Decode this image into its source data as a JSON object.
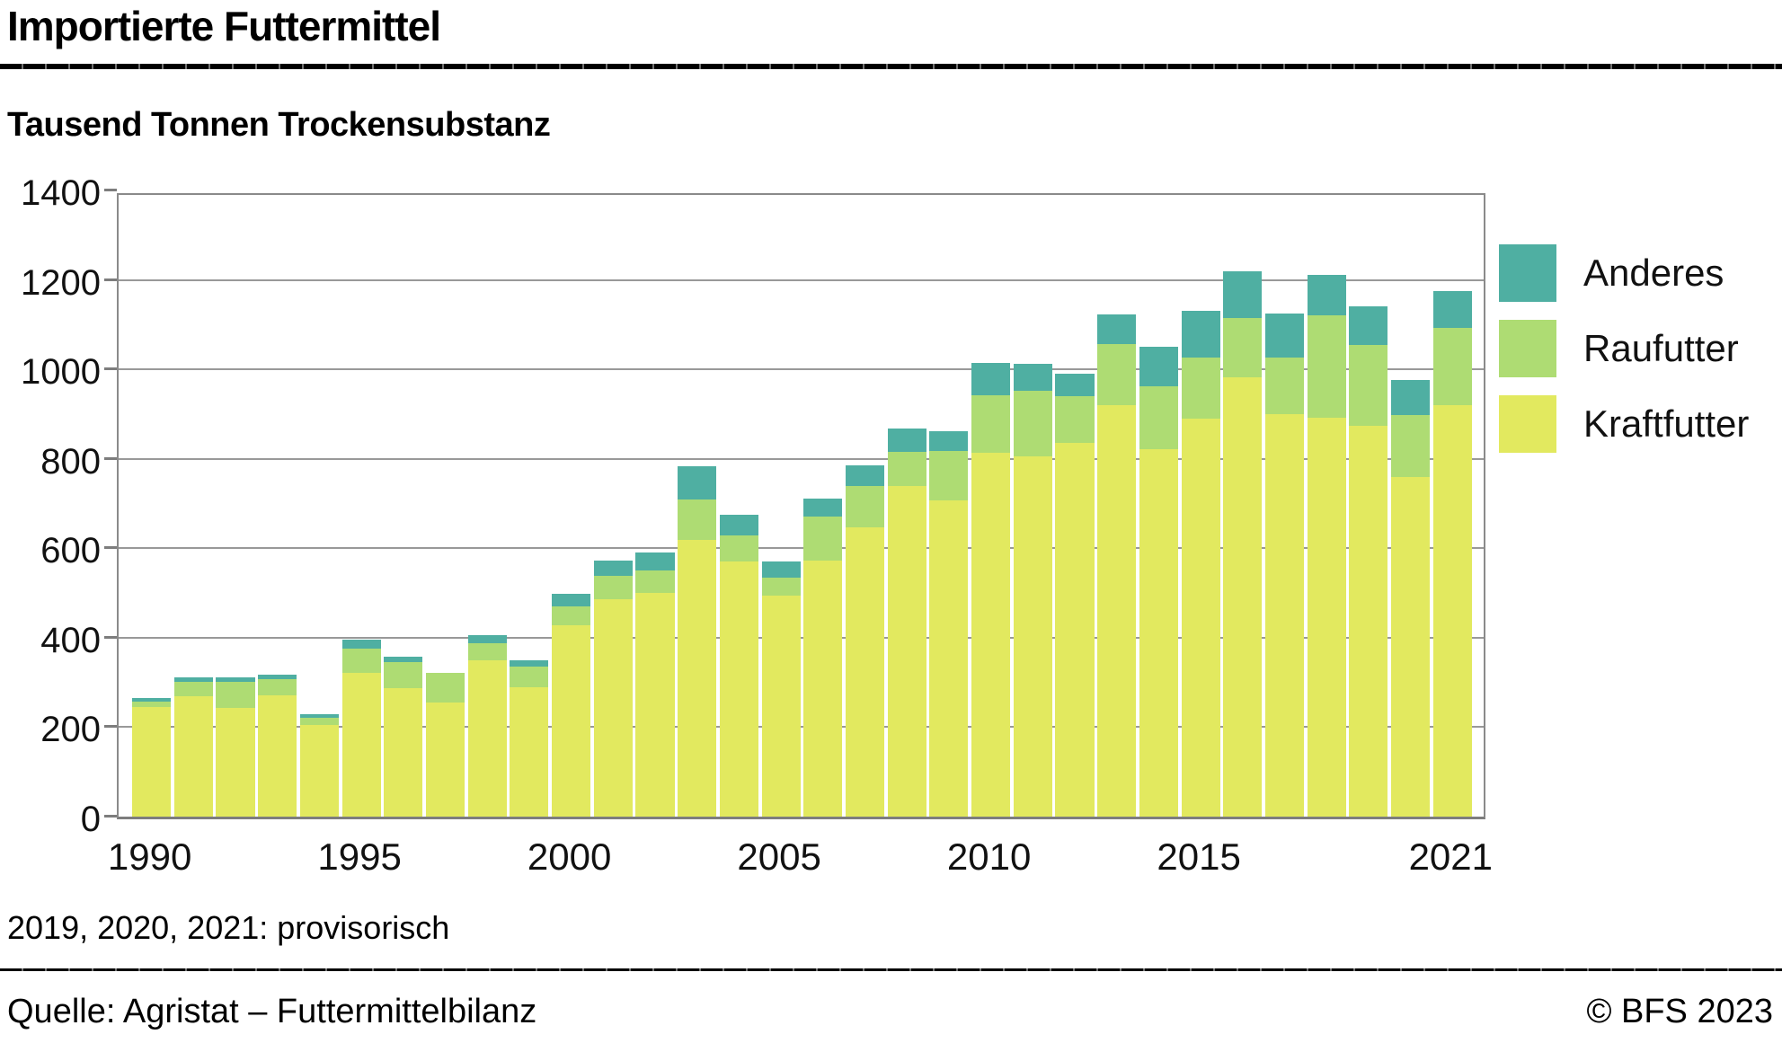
{
  "header": {
    "title": "Importierte Futtermittel",
    "subtitle": "Tausend Tonnen Trockensubstanz"
  },
  "note": "2019, 2020, 2021: provisorisch",
  "footer": {
    "source": "Quelle: Agristat – Futtermittelbilanz",
    "copyright": "© BFS 2023"
  },
  "colors": {
    "anderes": "#4FAFA2",
    "raufutter": "#AEDC73",
    "kraftfutter": "#E2E95F",
    "gridline": "#999999",
    "axis": "#7d7d7d",
    "text": "#111111"
  },
  "chart_data": {
    "type": "bar",
    "stacked": true,
    "title": "Importierte Futtermittel",
    "ylabel": "Tausend Tonnen Trockensubstanz",
    "xlabel": "",
    "grid": true,
    "legend_position": "right",
    "ylim": [
      0,
      1400
    ],
    "yticks": [
      0,
      200,
      400,
      600,
      800,
      1000,
      1200,
      1400
    ],
    "categories": [
      1990,
      1991,
      1992,
      1993,
      1994,
      1995,
      1996,
      1997,
      1998,
      1999,
      2000,
      2001,
      2002,
      2003,
      2004,
      2005,
      2006,
      2007,
      2008,
      2009,
      2010,
      2011,
      2012,
      2013,
      2014,
      2015,
      2016,
      2017,
      2018,
      2019,
      2020,
      2021
    ],
    "x_tick_indices": [
      0,
      5,
      10,
      15,
      20,
      25,
      31
    ],
    "series": [
      {
        "name": "Kraftfutter",
        "color": "#E2E95F",
        "values": [
          245,
          270,
          244,
          272,
          204,
          322,
          288,
          255,
          349,
          290,
          428,
          487,
          500,
          619,
          570,
          495,
          572,
          646,
          739,
          707,
          813,
          806,
          836,
          920,
          822,
          889,
          982,
          899,
          892,
          874,
          760,
          920
        ]
      },
      {
        "name": "Raufutter",
        "color": "#AEDC73",
        "values": [
          12,
          32,
          58,
          36,
          17,
          54,
          57,
          67,
          39,
          46,
          43,
          52,
          50,
          91,
          59,
          40,
          98,
          94,
          76,
          110,
          130,
          146,
          104,
          136,
          140,
          138,
          132,
          128,
          228,
          180,
          137,
          172
        ]
      },
      {
        "name": "Anderes",
        "color": "#4FAFA2",
        "values": [
          9,
          9,
          9,
          9,
          8,
          20,
          12,
          0,
          18,
          13,
          27,
          34,
          40,
          74,
          46,
          35,
          42,
          46,
          53,
          45,
          72,
          60,
          50,
          66,
          88,
          104,
          106,
          98,
          92,
          87,
          79,
          83
        ]
      }
    ],
    "totals": [
      266,
      311,
      311,
      317,
      229,
      396,
      357,
      322,
      406,
      349,
      498,
      573,
      590,
      784,
      675,
      570,
      712,
      786,
      868,
      862,
      1015,
      1012,
      990,
      1122,
      1050,
      1131,
      1220,
      1125,
      1212,
      1141,
      976,
      1175
    ]
  }
}
